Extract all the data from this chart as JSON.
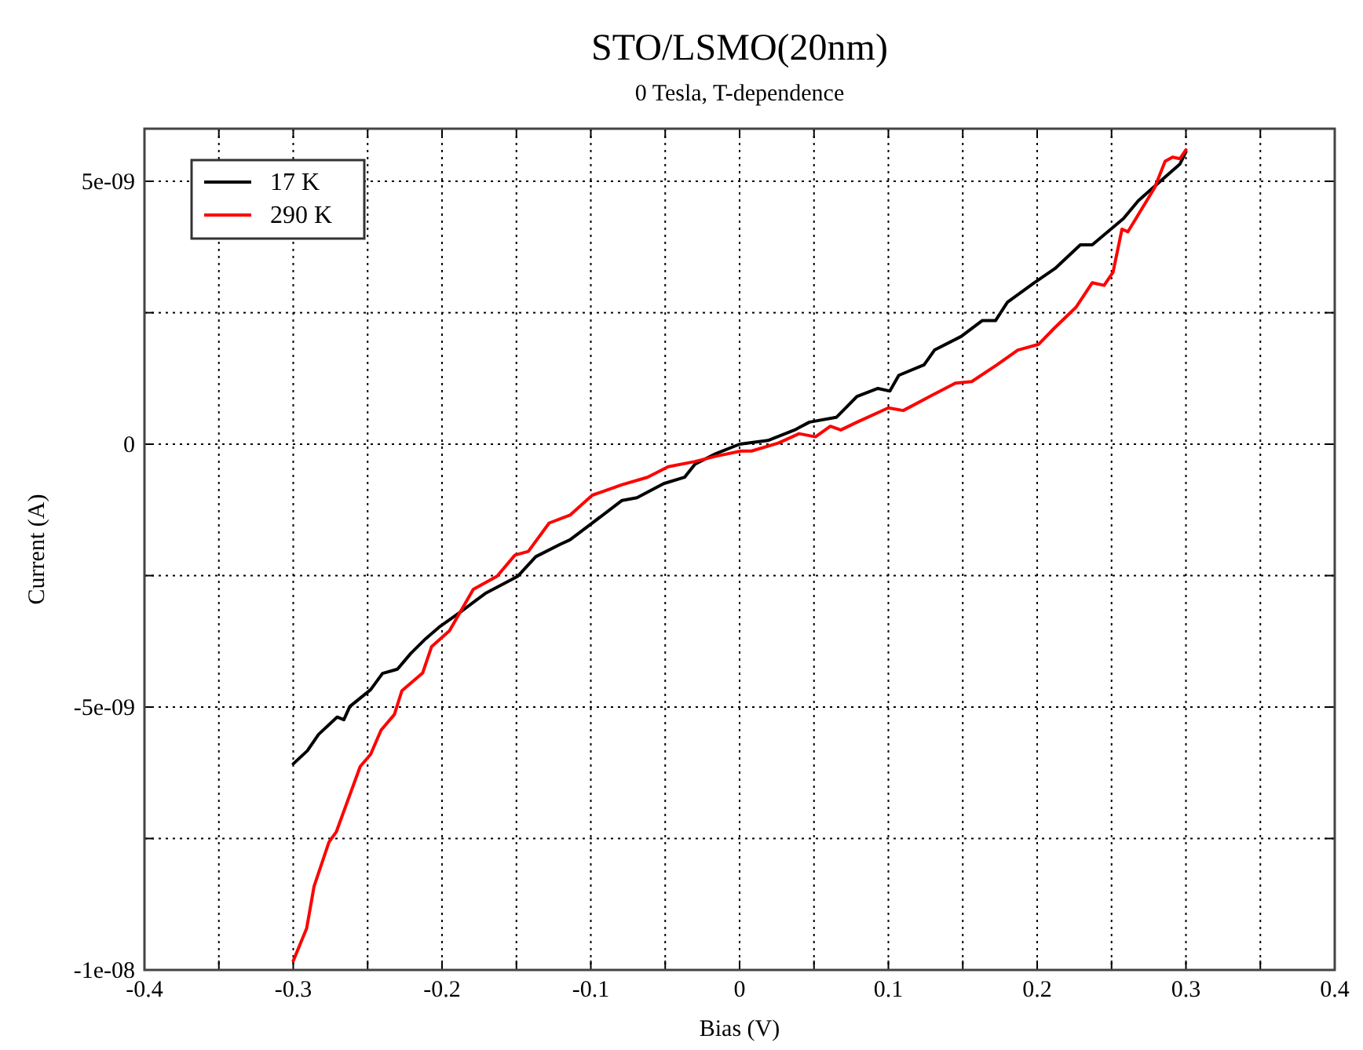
{
  "chart_data": {
    "type": "line",
    "title": "STO/LSMO(20nm)",
    "subtitle": "0 Tesla, T-dependence",
    "xlabel": "Bias (V)",
    "ylabel": "Current (A)",
    "xlim": [
      -0.4,
      0.4
    ],
    "xticks": [
      -0.4,
      {
        "value": -0.35,
        "label": null
      },
      -0.3,
      {
        "value": -0.25,
        "label": null
      },
      -0.2,
      {
        "value": -0.15,
        "label": null
      },
      -0.1,
      {
        "value": -0.05,
        "label": null
      },
      0,
      {
        "value": 0.05,
        "label": null
      },
      0.1,
      {
        "value": 0.15,
        "label": null
      },
      0.2,
      {
        "value": 0.25,
        "label": null
      },
      0.3,
      {
        "value": 0.35,
        "label": null
      },
      0.4
    ],
    "ylim": [
      -1e-08,
      6e-09
    ],
    "yticks": [
      {
        "value": -1e-08,
        "label": "-1e-08"
      },
      {
        "value": -7.5e-09,
        "label": null
      },
      {
        "value": -5e-09,
        "label": "-5e-09"
      },
      {
        "value": -2.5e-09,
        "label": null
      },
      0,
      {
        "value": 2.5e-09,
        "label": null
      },
      {
        "value": 5e-09,
        "label": "5e-09"
      }
    ],
    "grid": true,
    "legend": "top left",
    "line_style": "solid",
    "marker": "none",
    "series": [
      {
        "name": "17 K",
        "color": "#000000",
        "x": [
          -0.3,
          -0.2905,
          -0.283,
          -0.2705,
          -0.266,
          -0.262,
          -0.248,
          -0.24,
          -0.23,
          -0.221,
          -0.211,
          -0.202,
          -0.188,
          -0.171,
          -0.149,
          -0.137,
          -0.121,
          -0.114,
          -0.1,
          -0.079,
          -0.069,
          -0.051,
          -0.037,
          -0.03,
          -0.016,
          0,
          0.019,
          0.037,
          0.047,
          0.065,
          0.079,
          0.093,
          0.101,
          0.107,
          0.124,
          0.131,
          0.149,
          0.163,
          0.172,
          0.18,
          0.198,
          0.212,
          0.229,
          0.237,
          0.258,
          0.268,
          0.282,
          0.296,
          0.3
        ],
        "values": [
          -6.08e-09,
          -5.83e-09,
          -5.52e-09,
          -5.19e-09,
          -5.24e-09,
          -4.99e-09,
          -4.67e-09,
          -4.36e-09,
          -4.28e-09,
          -3.98e-09,
          -3.7e-09,
          -3.48e-09,
          -3.2e-09,
          -2.84e-09,
          -2.51e-09,
          -2.14e-09,
          -1.91e-09,
          -1.82e-09,
          -1.52e-09,
          -1.07e-09,
          -1.02e-09,
          -7.5e-10,
          -6.3e-10,
          -3.8e-10,
          -1.8e-10,
          0,
          7e-11,
          2.7e-10,
          4.2e-10,
          5.1e-10,
          9.1e-10,
          1.06e-09,
          1.01e-09,
          1.31e-09,
          1.51e-09,
          1.79e-09,
          2.05e-09,
          2.35e-09,
          2.35e-09,
          2.7e-09,
          3.07e-09,
          3.34e-09,
          3.79e-09,
          3.79e-09,
          4.29e-09,
          4.63e-09,
          4.98e-09,
          5.33e-09,
          5.56e-09
        ]
      },
      {
        "name": "290 K",
        "color": "#ff0000",
        "x": [
          -0.3,
          -0.291,
          -0.286,
          -0.276,
          -0.271,
          -0.255,
          -0.248,
          -0.241,
          -0.232,
          -0.227,
          -0.213,
          -0.207,
          -0.195,
          -0.179,
          -0.163,
          -0.151,
          -0.142,
          -0.128,
          -0.114,
          -0.099,
          -0.079,
          -0.062,
          -0.048,
          -0.03,
          -0.016,
          0.001,
          0.008,
          0.026,
          0.04,
          0.051,
          0.061,
          0.068,
          0.079,
          0.1,
          0.11,
          0.128,
          0.145,
          0.156,
          0.173,
          0.187,
          0.201,
          0.212,
          0.226,
          0.237,
          0.245,
          0.251,
          0.257,
          0.261,
          0.279,
          0.286,
          0.291,
          0.296,
          0.3
        ],
        "values": [
          -9.83e-09,
          -9.21e-09,
          -8.41e-09,
          -7.57e-09,
          -7.37e-09,
          -6.13e-09,
          -5.9e-09,
          -5.44e-09,
          -5.14e-09,
          -4.69e-09,
          -4.35e-09,
          -3.85e-09,
          -3.55e-09,
          -2.76e-09,
          -2.51e-09,
          -2.11e-09,
          -2.04e-09,
          -1.5e-09,
          -1.35e-09,
          -9.7e-10,
          -7.7e-10,
          -6.3e-10,
          -4.3e-10,
          -3.3e-10,
          -2.3e-10,
          -1.3e-10,
          -1.3e-10,
          2e-11,
          2e-10,
          1.4e-10,
          3.4e-10,
          2.7e-10,
          4.2e-10,
          6.9e-10,
          6.4e-10,
          9.1e-10,
          1.16e-09,
          1.19e-09,
          1.51e-09,
          1.79e-09,
          1.9e-09,
          2.22e-09,
          2.6e-09,
          3.07e-09,
          3.02e-09,
          3.27e-09,
          4.09e-09,
          4.04e-09,
          4.88e-09,
          5.38e-09,
          5.46e-09,
          5.43e-09,
          5.6e-09
        ]
      }
    ]
  }
}
